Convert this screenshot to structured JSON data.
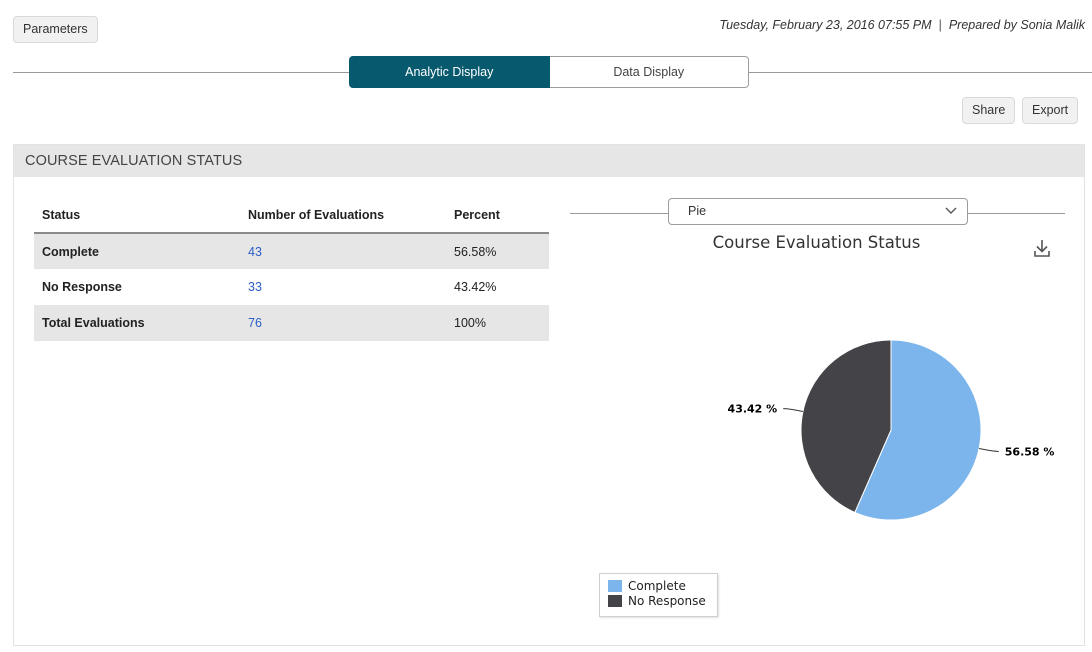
{
  "header": {
    "parameters_label": "Parameters",
    "datetime": "Tuesday, February 23, 2016 07:55 PM",
    "separator": "|",
    "prepared_by": "Prepared by Sonia Malik"
  },
  "tabs": [
    {
      "label": "Analytic Display",
      "active": true
    },
    {
      "label": "Data Display",
      "active": false
    }
  ],
  "toolbar": {
    "share_label": "Share",
    "export_label": "Export"
  },
  "panel": {
    "title": "COURSE EVALUATION STATUS",
    "table": {
      "columns": [
        "Status",
        "Number of Evaluations",
        "Percent"
      ],
      "rows": [
        {
          "status": "Complete",
          "count": "43",
          "percent": "56.58%"
        },
        {
          "status": "No Response",
          "count": "33",
          "percent": "43.42%"
        },
        {
          "status": "Total Evaluations",
          "count": "76",
          "percent": "100%"
        }
      ]
    },
    "chart_type_select": {
      "value": "Pie"
    }
  },
  "colors": {
    "complete": "#7cb5ec",
    "no_response": "#434348",
    "accent": "#075a6e",
    "link": "#2b5fc9"
  },
  "icons": {
    "download": "download-icon",
    "dropdown": "chevron-down-icon"
  },
  "chart_data": {
    "type": "pie",
    "title": "Course Evaluation Status",
    "slices": [
      {
        "name": "Complete",
        "value": 56.58,
        "label": "56.58 %",
        "color": "#7cb5ec"
      },
      {
        "name": "No Response",
        "value": 43.42,
        "label": "43.42 %",
        "color": "#434348"
      }
    ],
    "legend": {
      "placement": "bottom-left",
      "items": [
        "Complete",
        "No Response"
      ]
    }
  }
}
